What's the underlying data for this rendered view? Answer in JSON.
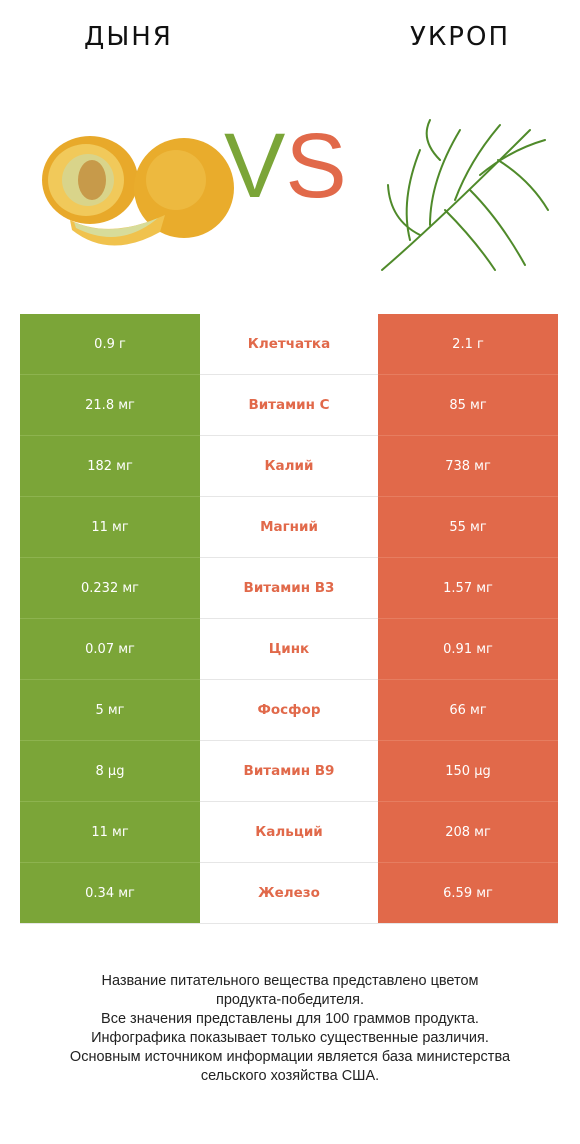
{
  "left_product": "ДЫНЯ",
  "right_product": "УКРОП",
  "vs": {
    "v": "V",
    "s": "S"
  },
  "colors": {
    "left": "#7ba538",
    "right": "#e1694a"
  },
  "icons": {
    "left": "melon-image",
    "right": "dill-image"
  },
  "rows": [
    {
      "left": "0.9 г",
      "nutrient": "Клетчатка",
      "right": "2.1 г",
      "winner": "right"
    },
    {
      "left": "21.8 мг",
      "nutrient": "Витамин C",
      "right": "85 мг",
      "winner": "right"
    },
    {
      "left": "182 мг",
      "nutrient": "Калий",
      "right": "738 мг",
      "winner": "right"
    },
    {
      "left": "11 мг",
      "nutrient": "Магний",
      "right": "55 мг",
      "winner": "right"
    },
    {
      "left": "0.232 мг",
      "nutrient": "Витамин B3",
      "right": "1.57 мг",
      "winner": "right"
    },
    {
      "left": "0.07 мг",
      "nutrient": "Цинк",
      "right": "0.91 мг",
      "winner": "right"
    },
    {
      "left": "5 мг",
      "nutrient": "Фосфор",
      "right": "66 мг",
      "winner": "right"
    },
    {
      "left": "8 µg",
      "nutrient": "Витамин B9",
      "right": "150 µg",
      "winner": "right"
    },
    {
      "left": "11 мг",
      "nutrient": "Кальций",
      "right": "208 мг",
      "winner": "right"
    },
    {
      "left": "0.34 мг",
      "nutrient": "Железо",
      "right": "6.59 мг",
      "winner": "right"
    }
  ],
  "footer": [
    "Название питательного вещества представлено цветом",
    "продукта-победителя.",
    "Все значения представлены для 100 граммов продукта.",
    "Инфографика показывает только существенные различия.",
    "Основным источником информации является база министерства",
    "сельского хозяйства США."
  ]
}
